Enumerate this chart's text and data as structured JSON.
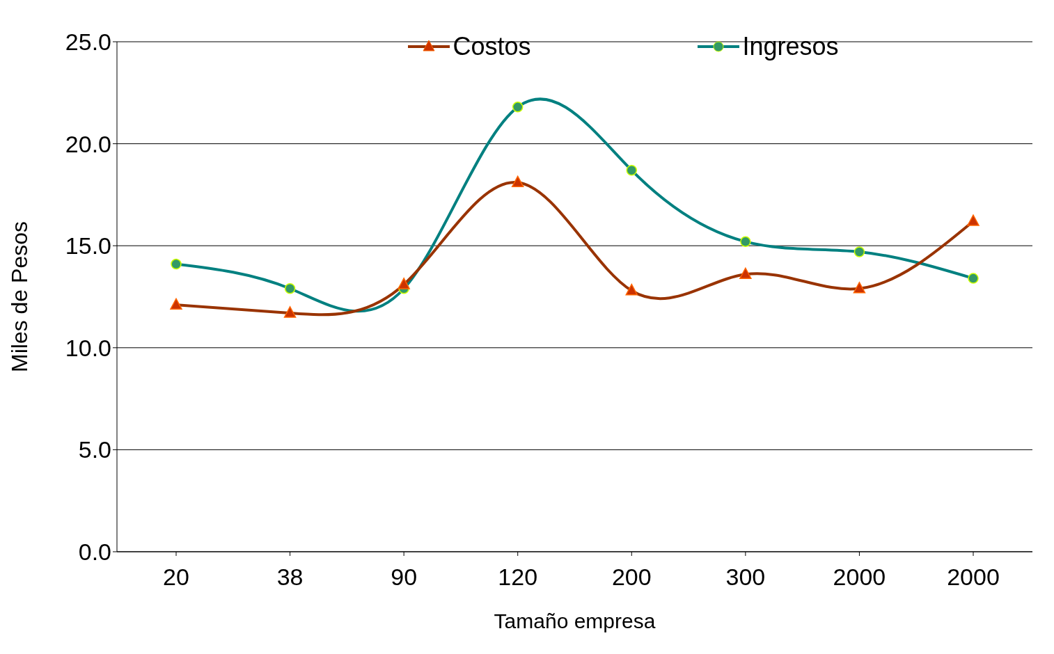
{
  "chart_data": {
    "type": "line",
    "xlabel": "Tamaño empresa",
    "ylabel": "Miles de Pesos",
    "categories": [
      "20",
      "38",
      "90",
      "120",
      "200",
      "300",
      "2000",
      "2000"
    ],
    "series": [
      {
        "name": "Costos",
        "color": "#993300",
        "marker": "triangle",
        "values": [
          12.1,
          11.7,
          13.1,
          18.1,
          12.8,
          13.6,
          12.9,
          16.2
        ]
      },
      {
        "name": "Ingresos",
        "color": "#008080",
        "marker": "circle",
        "values": [
          14.1,
          12.9,
          12.9,
          21.8,
          18.7,
          15.2,
          14.7,
          13.4
        ]
      }
    ],
    "ylim": [
      0,
      25
    ],
    "yticks": [
      {
        "value": 0,
        "label": "0.0"
      },
      {
        "value": 5,
        "label": "5.0"
      },
      {
        "value": 10,
        "label": "10.0"
      },
      {
        "value": 15,
        "label": "15.0"
      },
      {
        "value": 20,
        "label": "20.0"
      },
      {
        "value": 25,
        "label": "25.0"
      }
    ],
    "grid": "y",
    "legend": "top",
    "line_style": "solid"
  }
}
